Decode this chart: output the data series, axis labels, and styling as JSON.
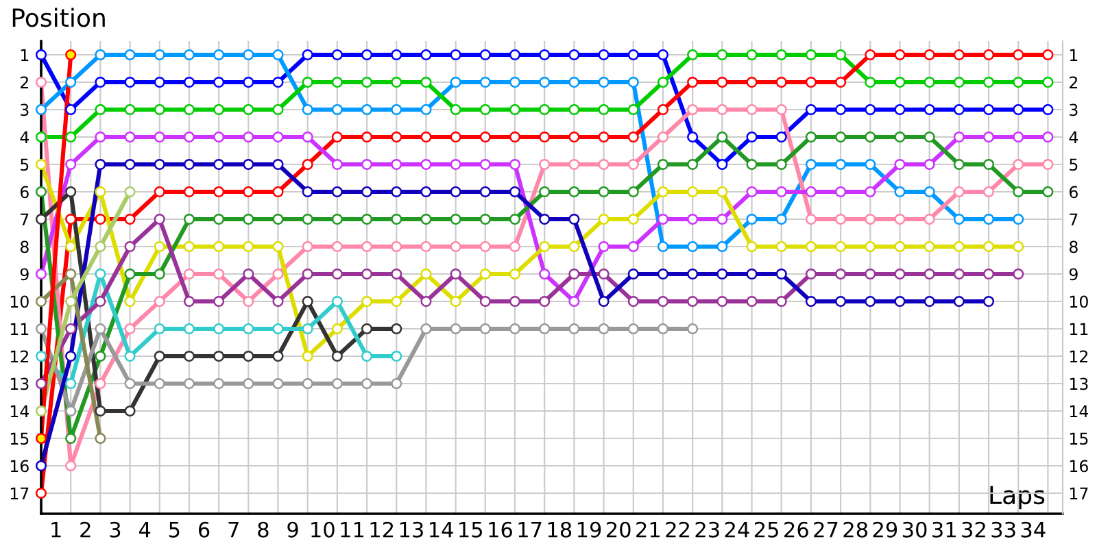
{
  "chart_data": {
    "type": "line",
    "xlabel": "Laps",
    "ylabel": "Position",
    "x": [
      0,
      1,
      2,
      3,
      4,
      5,
      6,
      7,
      8,
      9,
      10,
      11,
      12,
      13,
      14,
      15,
      16,
      17,
      18,
      19,
      20,
      21,
      22,
      23,
      24,
      25,
      26,
      27,
      28,
      29,
      30,
      31,
      32,
      33,
      34
    ],
    "xlim": [
      0,
      34.5
    ],
    "ylim": [
      17.75,
      0.5
    ],
    "y2lim": [
      17.75,
      0.5
    ],
    "xticks": [
      {
        "value": 0.5,
        "label": "1"
      },
      {
        "value": 1.5,
        "label": "2"
      },
      {
        "value": 2.5,
        "label": "3"
      },
      {
        "value": 3.5,
        "label": "4"
      },
      {
        "value": 4.5,
        "label": "5"
      },
      {
        "value": 5.5,
        "label": "6"
      },
      {
        "value": 6.5,
        "label": "7"
      },
      {
        "value": 7.5,
        "label": "8"
      },
      {
        "value": 8.5,
        "label": "9"
      },
      {
        "value": 9.5,
        "label": "10"
      },
      {
        "value": 10.5,
        "label": "11"
      },
      {
        "value": 11.5,
        "label": "12"
      },
      {
        "value": 12.5,
        "label": "13"
      },
      {
        "value": 13.5,
        "label": "14"
      },
      {
        "value": 14.5,
        "label": "15"
      },
      {
        "value": 15.5,
        "label": "16"
      },
      {
        "value": 16.5,
        "label": "17"
      },
      {
        "value": 17.5,
        "label": "18"
      },
      {
        "value": 18.5,
        "label": "19"
      },
      {
        "value": 19.5,
        "label": "20"
      },
      {
        "value": 20.5,
        "label": "21"
      },
      {
        "value": 21.5,
        "label": "22"
      },
      {
        "value": 22.5,
        "label": "23"
      },
      {
        "value": 23.5,
        "label": "24"
      },
      {
        "value": 24.5,
        "label": "25"
      },
      {
        "value": 25.5,
        "label": "26"
      },
      {
        "value": 26.5,
        "label": "27"
      },
      {
        "value": 27.5,
        "label": "28"
      },
      {
        "value": 28.5,
        "label": "29"
      },
      {
        "value": 29.5,
        "label": "30"
      },
      {
        "value": 30.5,
        "label": "31"
      },
      {
        "value": 31.5,
        "label": "32"
      },
      {
        "value": 32.5,
        "label": "33"
      },
      {
        "value": 33.5,
        "label": "34"
      },
      {
        "value": 0,
        "label": null
      },
      {
        "value": 1,
        "label": null
      },
      {
        "value": 2,
        "label": null
      },
      {
        "value": 3,
        "label": null
      },
      {
        "value": 4,
        "label": null
      },
      {
        "value": 5,
        "label": null
      },
      {
        "value": 6,
        "label": null
      },
      {
        "value": 7,
        "label": null
      },
      {
        "value": 8,
        "label": null
      },
      {
        "value": 9,
        "label": null
      },
      {
        "value": 10,
        "label": null
      },
      {
        "value": 11,
        "label": null
      },
      {
        "value": 12,
        "label": null
      },
      {
        "value": 13,
        "label": null
      },
      {
        "value": 14,
        "label": null
      },
      {
        "value": 15,
        "label": null
      },
      {
        "value": 16,
        "label": null
      },
      {
        "value": 17,
        "label": null
      },
      {
        "value": 18,
        "label": null
      },
      {
        "value": 19,
        "label": null
      },
      {
        "value": 20,
        "label": null
      },
      {
        "value": 21,
        "label": null
      },
      {
        "value": 22,
        "label": null
      },
      {
        "value": 23,
        "label": null
      },
      {
        "value": 24,
        "label": null
      },
      {
        "value": 25,
        "label": null
      },
      {
        "value": 26,
        "label": null
      },
      {
        "value": 27,
        "label": null
      },
      {
        "value": 28,
        "label": null
      },
      {
        "value": 29,
        "label": null
      },
      {
        "value": 30,
        "label": null
      },
      {
        "value": 31,
        "label": null
      },
      {
        "value": 32,
        "label": null
      },
      {
        "value": 33,
        "label": null
      },
      {
        "value": 34,
        "label": null
      }
    ],
    "yticks": [
      1,
      2,
      3,
      4,
      5,
      6,
      7,
      8,
      9,
      10,
      11,
      12,
      13,
      14,
      15,
      16,
      17
    ],
    "y2ticks": [
      1,
      2,
      3,
      4,
      5,
      6,
      7,
      8,
      9,
      10,
      11,
      12,
      13,
      14,
      15,
      16,
      17
    ],
    "grid": true,
    "marker": "circle",
    "line_style": "solid",
    "series": [
      {
        "color": "#0000ff",
        "values": [
          1,
          3,
          2,
          2,
          2,
          2,
          2,
          2,
          2,
          1,
          1,
          1,
          1,
          1,
          1,
          1,
          1,
          1,
          1,
          1,
          1,
          1,
          4,
          5,
          4,
          4,
          3,
          3,
          3,
          3,
          3,
          3,
          3,
          3,
          3
        ]
      },
      {
        "color": "#0099ff",
        "values": [
          3,
          2,
          1,
          1,
          1,
          1,
          1,
          1,
          1,
          3,
          3,
          3,
          3,
          3,
          2,
          2,
          2,
          2,
          2,
          2,
          2,
          8,
          8,
          8,
          7,
          7,
          5,
          5,
          5,
          6,
          6,
          7,
          7,
          7,
          null
        ]
      },
      {
        "color": "#00cc00",
        "values": [
          4,
          4,
          3,
          3,
          3,
          3,
          3,
          3,
          3,
          2,
          2,
          2,
          2,
          2,
          3,
          3,
          3,
          3,
          3,
          3,
          3,
          2,
          1,
          1,
          1,
          1,
          1,
          1,
          2,
          2,
          2,
          2,
          2,
          2,
          2
        ]
      },
      {
        "color": "#ff0000",
        "values": [
          17,
          7,
          7,
          7,
          6,
          6,
          6,
          6,
          6,
          5,
          4,
          4,
          4,
          4,
          4,
          4,
          4,
          4,
          4,
          4,
          4,
          3,
          2,
          2,
          2,
          2,
          2,
          2,
          1,
          1,
          1,
          1,
          1,
          1,
          1
        ]
      },
      {
        "color": "#ff88aa",
        "values": [
          2,
          16,
          13,
          11,
          10,
          9,
          9,
          10,
          9,
          8,
          8,
          8,
          8,
          8,
          8,
          8,
          8,
          5,
          5,
          5,
          5,
          4,
          3,
          3,
          3,
          3,
          7,
          7,
          7,
          7,
          7,
          6,
          6,
          5,
          5
        ]
      },
      {
        "color": "#cc33ff",
        "values": [
          9,
          5,
          4,
          4,
          4,
          4,
          4,
          4,
          4,
          4,
          5,
          5,
          5,
          5,
          5,
          5,
          5,
          9,
          10,
          8,
          8,
          7,
          7,
          7,
          6,
          6,
          6,
          6,
          6,
          5,
          5,
          4,
          4,
          4,
          4
        ]
      },
      {
        "color": "#dddd00",
        "values": [
          5,
          8,
          6,
          10,
          8,
          8,
          8,
          8,
          8,
          12,
          11,
          10,
          10,
          9,
          10,
          9,
          9,
          8,
          8,
          7,
          7,
          6,
          6,
          6,
          8,
          8,
          8,
          8,
          8,
          8,
          8,
          8,
          8,
          8,
          null
        ]
      },
      {
        "color": "#229922",
        "values": [
          6,
          15,
          12,
          9,
          9,
          7,
          7,
          7,
          7,
          7,
          7,
          7,
          7,
          7,
          7,
          7,
          7,
          6,
          6,
          6,
          6,
          5,
          5,
          4,
          5,
          5,
          4,
          4,
          4,
          4,
          4,
          5,
          5,
          6,
          6
        ]
      },
      {
        "color": "#333333",
        "values": [
          7,
          6,
          14,
          14,
          12,
          12,
          12,
          12,
          12,
          10,
          12,
          11,
          11,
          null,
          null,
          null,
          null,
          null,
          null,
          null,
          null,
          null,
          null,
          null,
          null,
          null,
          null,
          null,
          null,
          null,
          null,
          null,
          null,
          null,
          null
        ]
      },
      {
        "color": "#33cccc",
        "values": [
          12,
          13,
          9,
          12,
          11,
          11,
          11,
          11,
          11,
          11,
          10,
          12,
          12,
          null,
          null,
          null,
          null,
          null,
          null,
          null,
          null,
          null,
          null,
          null,
          null,
          null,
          null,
          null,
          null,
          null,
          null,
          null,
          null,
          null,
          null
        ]
      },
      {
        "color": "#999999",
        "values": [
          11,
          14,
          11,
          13,
          13,
          13,
          13,
          13,
          13,
          13,
          13,
          13,
          13,
          11,
          11,
          11,
          11,
          11,
          11,
          11,
          11,
          11,
          11,
          null,
          null,
          null,
          null,
          null,
          null,
          null,
          null,
          null,
          null,
          null,
          null
        ]
      },
      {
        "color": "#993399",
        "values": [
          13,
          11,
          10,
          8,
          7,
          10,
          10,
          9,
          10,
          9,
          9,
          9,
          9,
          10,
          9,
          10,
          10,
          10,
          9,
          9,
          10,
          10,
          10,
          10,
          10,
          10,
          9,
          9,
          9,
          9,
          9,
          9,
          9,
          9,
          null
        ]
      },
      {
        "color": "#1100bb",
        "values": [
          16,
          12,
          5,
          5,
          5,
          5,
          5,
          5,
          5,
          6,
          6,
          6,
          6,
          6,
          6,
          6,
          6,
          7,
          7,
          10,
          9,
          9,
          9,
          9,
          9,
          9,
          10,
          10,
          10,
          10,
          10,
          10,
          10,
          null,
          null
        ]
      },
      {
        "color": "#888855",
        "values": [
          10,
          9,
          15,
          null,
          null,
          null,
          null,
          null,
          null,
          null,
          null,
          null,
          null,
          null,
          null,
          null,
          null,
          null,
          null,
          null,
          null,
          null,
          null,
          null,
          null,
          null,
          null,
          null,
          null,
          null,
          null,
          null,
          null,
          null,
          null
        ]
      },
      {
        "color": "#aacc66",
        "values": [
          14,
          10,
          8,
          6,
          null,
          null,
          null,
          null,
          null,
          null,
          null,
          null,
          null,
          null,
          null,
          null,
          null,
          null,
          null,
          null,
          null,
          null,
          null,
          null,
          null,
          null,
          null,
          null,
          null,
          null,
          null,
          null,
          null,
          null,
          null
        ]
      },
      {
        "color": "#ff0000",
        "x": [
          0,
          1
        ],
        "values": [
          15,
          1
        ],
        "colors": [
          "#ffee00",
          "#ffee00"
        ]
      }
    ]
  }
}
